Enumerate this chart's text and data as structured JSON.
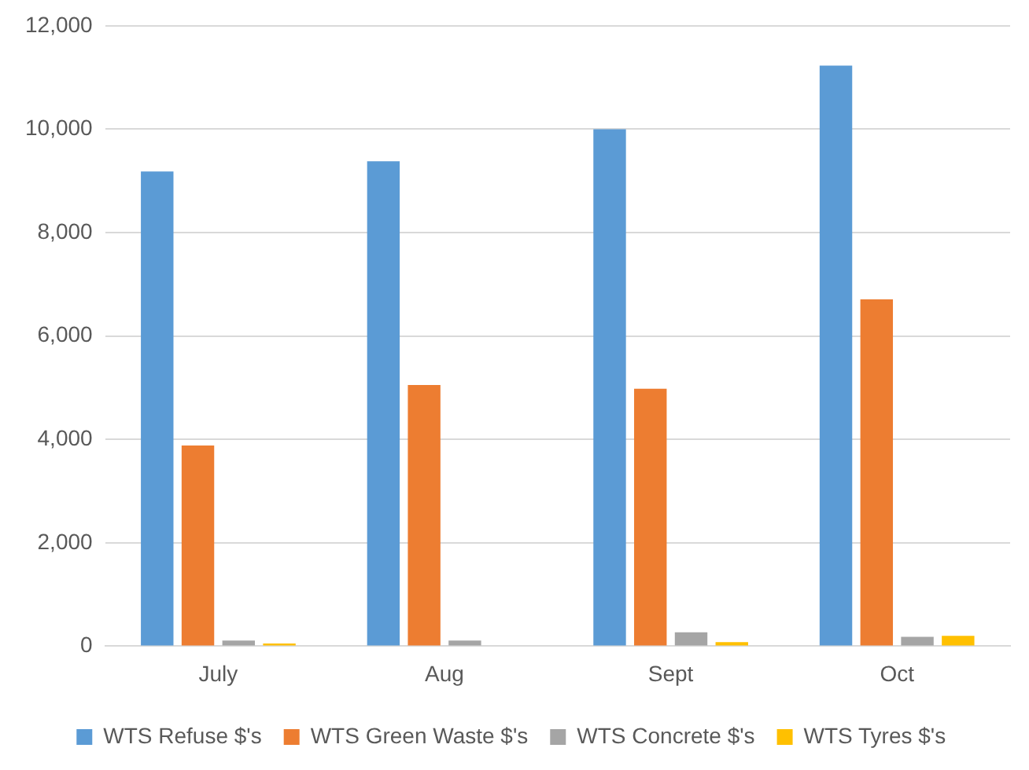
{
  "chart_data": {
    "type": "bar",
    "categories": [
      "July",
      "Aug",
      "Sept",
      "Oct"
    ],
    "series": [
      {
        "name": "WTS Refuse $'s",
        "color": "#5b9bd5",
        "values": [
          9180,
          9380,
          10000,
          11230
        ]
      },
      {
        "name": "WTS Green Waste $'s",
        "color": "#ed7d31",
        "values": [
          3880,
          5050,
          4980,
          6710
        ]
      },
      {
        "name": "WTS Concrete $'s",
        "color": "#a5a5a5",
        "values": [
          110,
          110,
          270,
          180
        ]
      },
      {
        "name": "WTS Tyres $'s",
        "color": "#ffc000",
        "values": [
          50,
          0,
          80,
          200
        ]
      }
    ],
    "ylim": [
      0,
      12000
    ],
    "yticks": [
      {
        "value": 0,
        "label": "0"
      },
      {
        "value": 2000,
        "label": "2,000"
      },
      {
        "value": 4000,
        "label": "4,000"
      },
      {
        "value": 6000,
        "label": "6,000"
      },
      {
        "value": 8000,
        "label": "8,000"
      },
      {
        "value": 10000,
        "label": "10,000"
      },
      {
        "value": 12000,
        "label": "12,000"
      }
    ],
    "grid": "y",
    "legend": "bottom"
  }
}
